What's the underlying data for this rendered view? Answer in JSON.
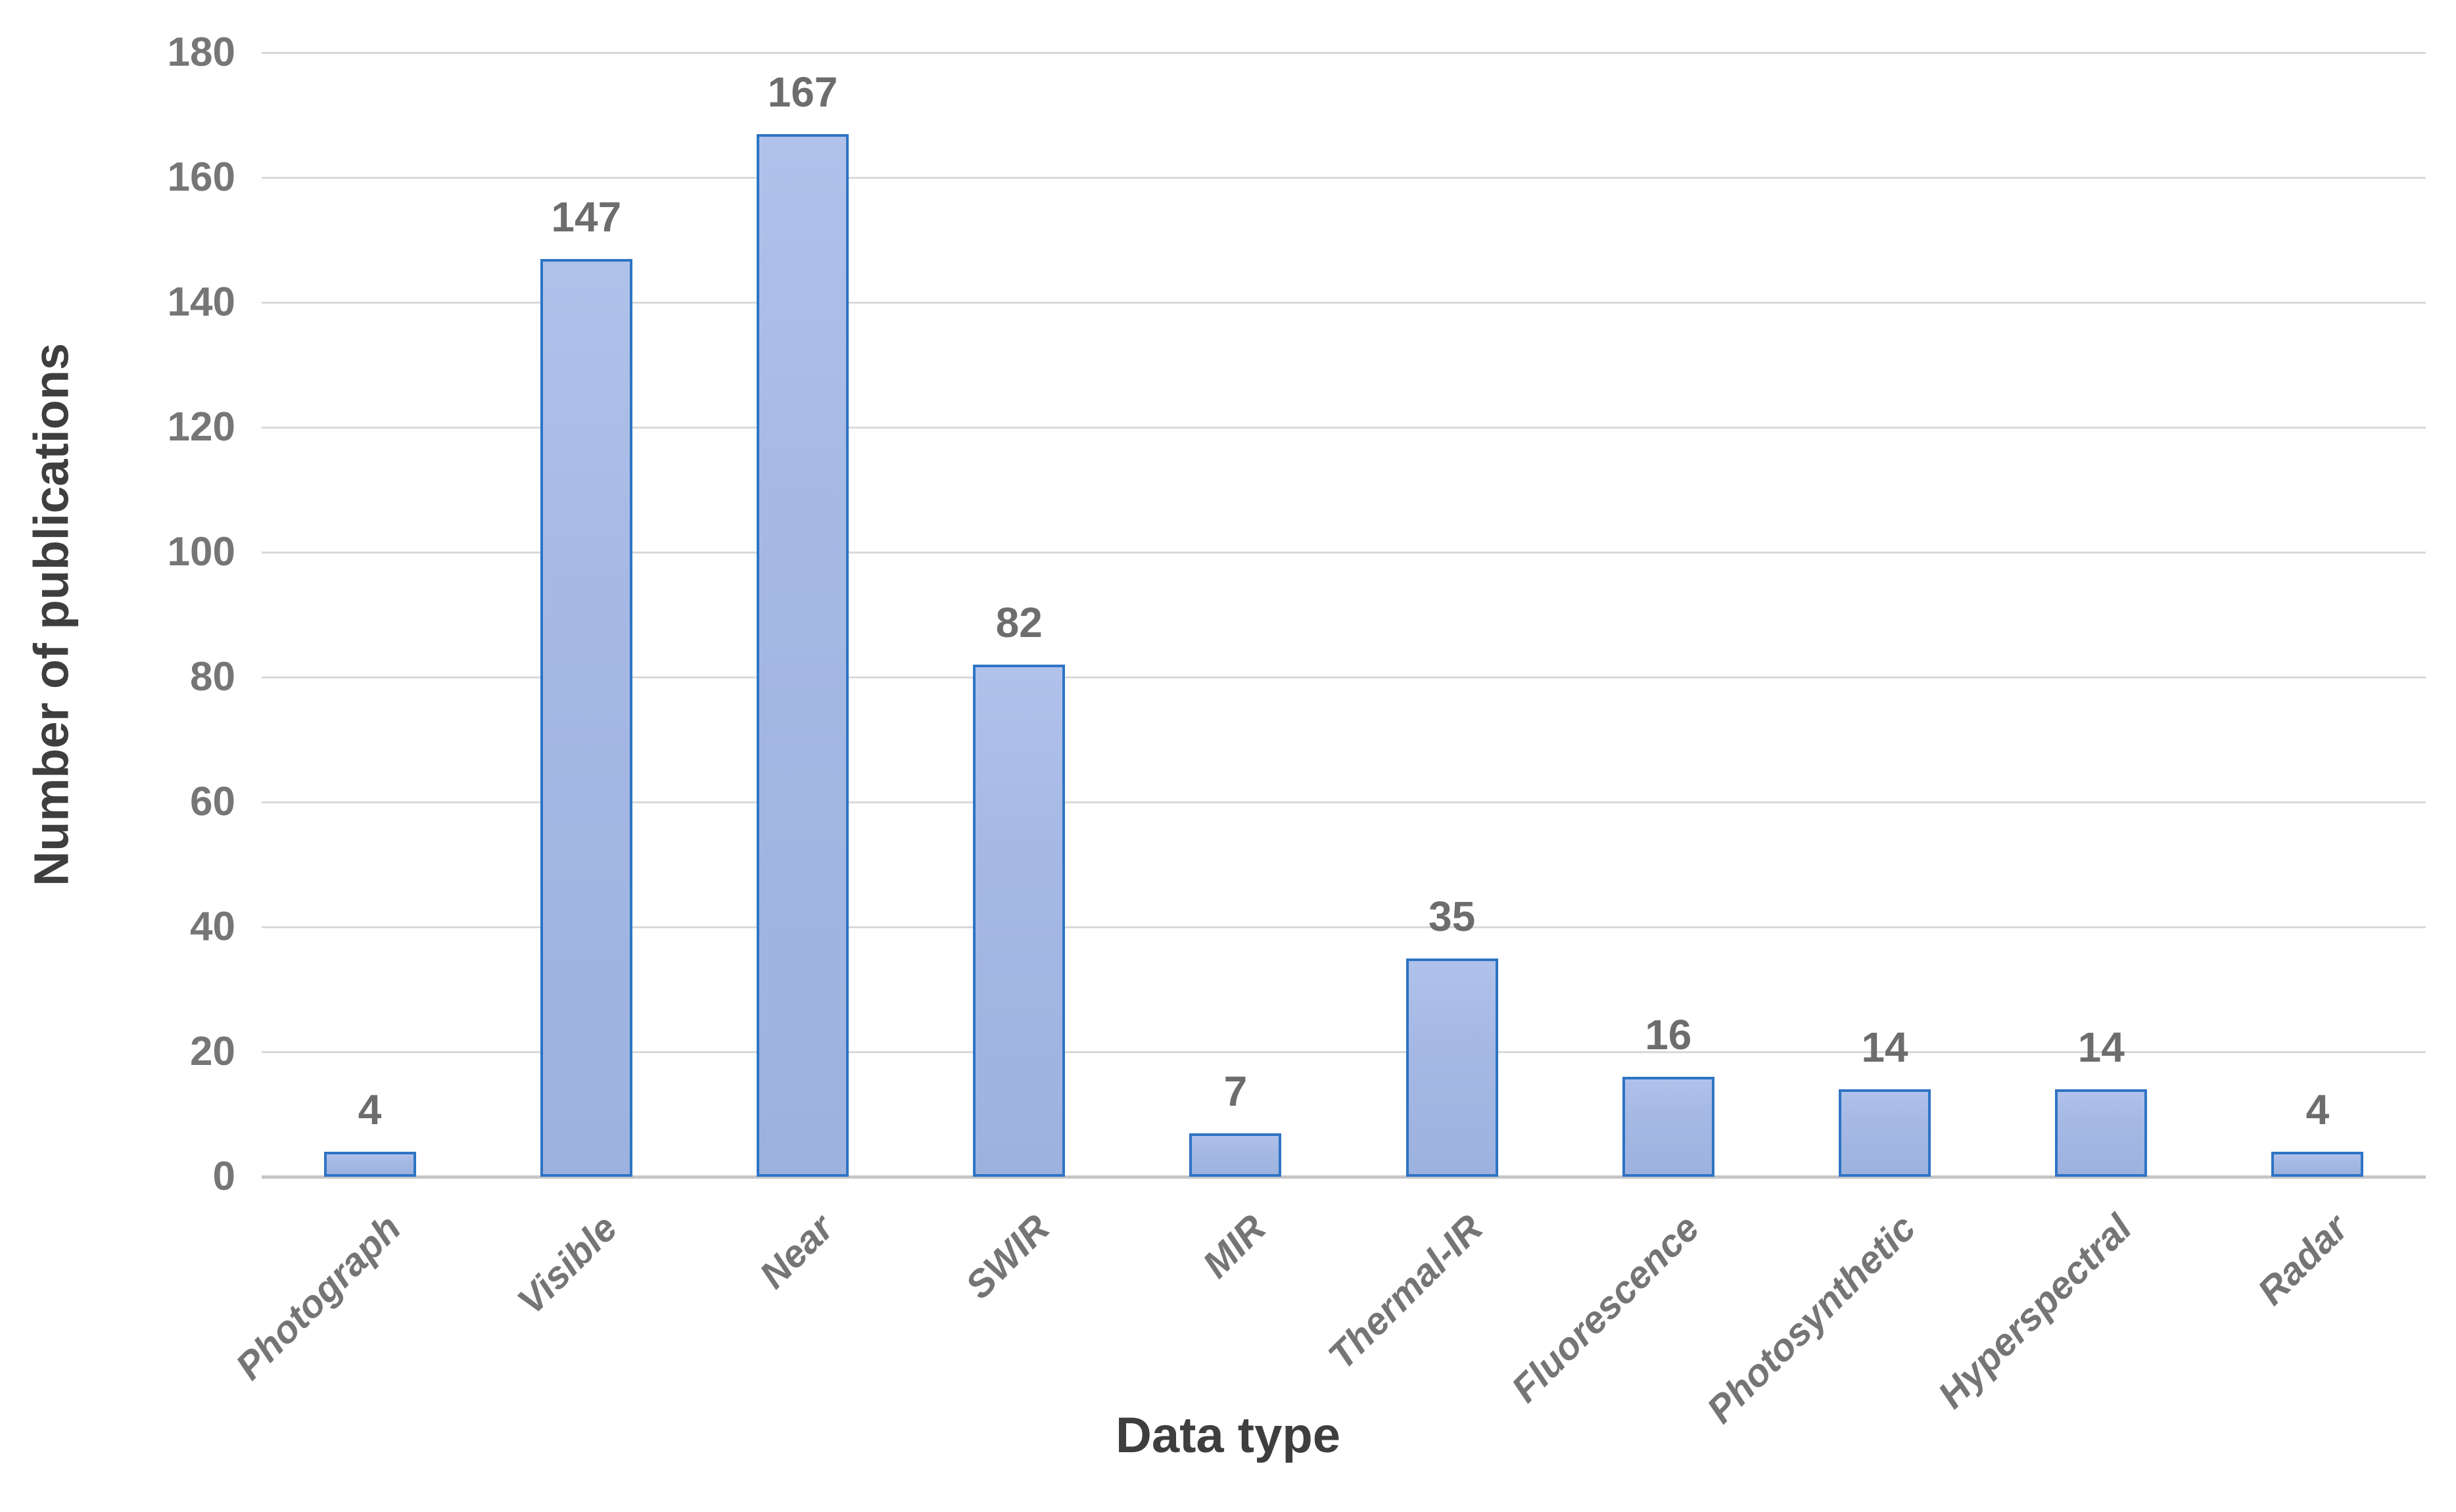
{
  "chart_data": {
    "type": "bar",
    "categories": [
      "Photograph",
      "Visible",
      "Near",
      "SWIR",
      "MIR",
      "Thermal-IR",
      "Fluorescence",
      "Photosynthetic",
      "Hyperspectral",
      "Radar"
    ],
    "values": [
      4,
      147,
      167,
      82,
      7,
      35,
      16,
      14,
      14,
      4
    ],
    "title": "",
    "xlabel": "Data type",
    "ylabel": "Number of publications",
    "ylim": [
      0,
      180
    ],
    "ytick_step": 20,
    "yticks": [
      0,
      20,
      40,
      60,
      80,
      100,
      120,
      140,
      160,
      180
    ],
    "grid": true,
    "legend": "none",
    "value_labels_shown": true,
    "colors": {
      "bar_fill": "#a6b9e5",
      "bar_border": "#2e74c4",
      "gridline": "#d9d9d9",
      "axis_line": "#c6c6c6",
      "tick_label": "#767676",
      "value_label": "#6d6d6d",
      "category_label": "#757575",
      "axis_title": "#3e3e3e",
      "background": "#ffffff"
    }
  }
}
